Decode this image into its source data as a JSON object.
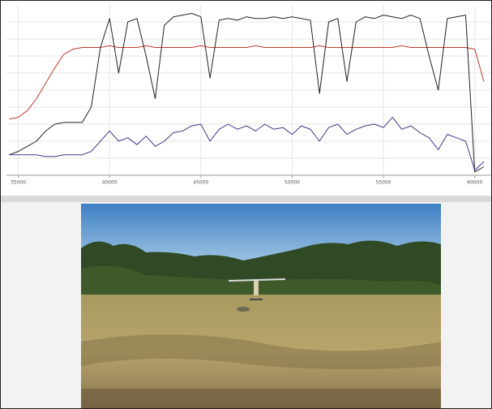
{
  "chart_data": {
    "type": "line",
    "x": [
      34500,
      35000,
      35500,
      36000,
      36500,
      37000,
      37500,
      38000,
      38500,
      39000,
      39500,
      40000,
      40500,
      41000,
      41500,
      42000,
      42500,
      43000,
      43500,
      44000,
      44500,
      45000,
      45500,
      46000,
      46500,
      47000,
      47500,
      48000,
      48500,
      49000,
      49500,
      50000,
      50500,
      51000,
      51500,
      52000,
      52500,
      53000,
      53500,
      54000,
      54500,
      55000,
      55500,
      56000,
      56500,
      57000,
      57500,
      58000,
      58500,
      59000,
      59500,
      60000,
      60500
    ],
    "series": [
      {
        "color": "#c0392b",
        "values": [
          33,
          34,
          38,
          45,
          54,
          63,
          71,
          74,
          75,
          75,
          75,
          76,
          75,
          75,
          75,
          76,
          75,
          75,
          75,
          75,
          75,
          76,
          75,
          75,
          75,
          75,
          75,
          76,
          75,
          75,
          75,
          75,
          75,
          75,
          76,
          75,
          75,
          75,
          75,
          75,
          75,
          75,
          75,
          76,
          75,
          75,
          75,
          75,
          75,
          75,
          75,
          74,
          55
        ]
      },
      {
        "color": "#222222",
        "values": [
          12,
          14,
          17,
          20,
          26,
          30,
          31,
          31,
          31,
          40,
          75,
          92,
          60,
          90,
          92,
          70,
          45,
          88,
          93,
          94,
          95,
          93,
          57,
          91,
          92,
          91,
          93,
          92,
          92,
          93,
          92,
          93,
          92,
          91,
          48,
          90,
          92,
          55,
          90,
          93,
          92,
          94,
          93,
          92,
          94,
          92,
          70,
          50,
          92,
          93,
          94,
          2,
          5
        ]
      },
      {
        "color": "#3a3a8c",
        "values": [
          12,
          12,
          12,
          12,
          11,
          11,
          12,
          12,
          12,
          14,
          20,
          26,
          20,
          22,
          18,
          23,
          17,
          20,
          25,
          26,
          29,
          30,
          20,
          27,
          30,
          27,
          29,
          26,
          30,
          27,
          28,
          24,
          29,
          27,
          20,
          28,
          30,
          24,
          27,
          29,
          30,
          28,
          34,
          27,
          29,
          25,
          22,
          15,
          24,
          22,
          20,
          3,
          8
        ]
      }
    ],
    "xlim": [
      34400,
      60900
    ],
    "ylim": [
      0,
      100
    ],
    "xticks": [
      35000,
      40000,
      45000,
      50000,
      55000,
      60000
    ],
    "grid": true
  }
}
